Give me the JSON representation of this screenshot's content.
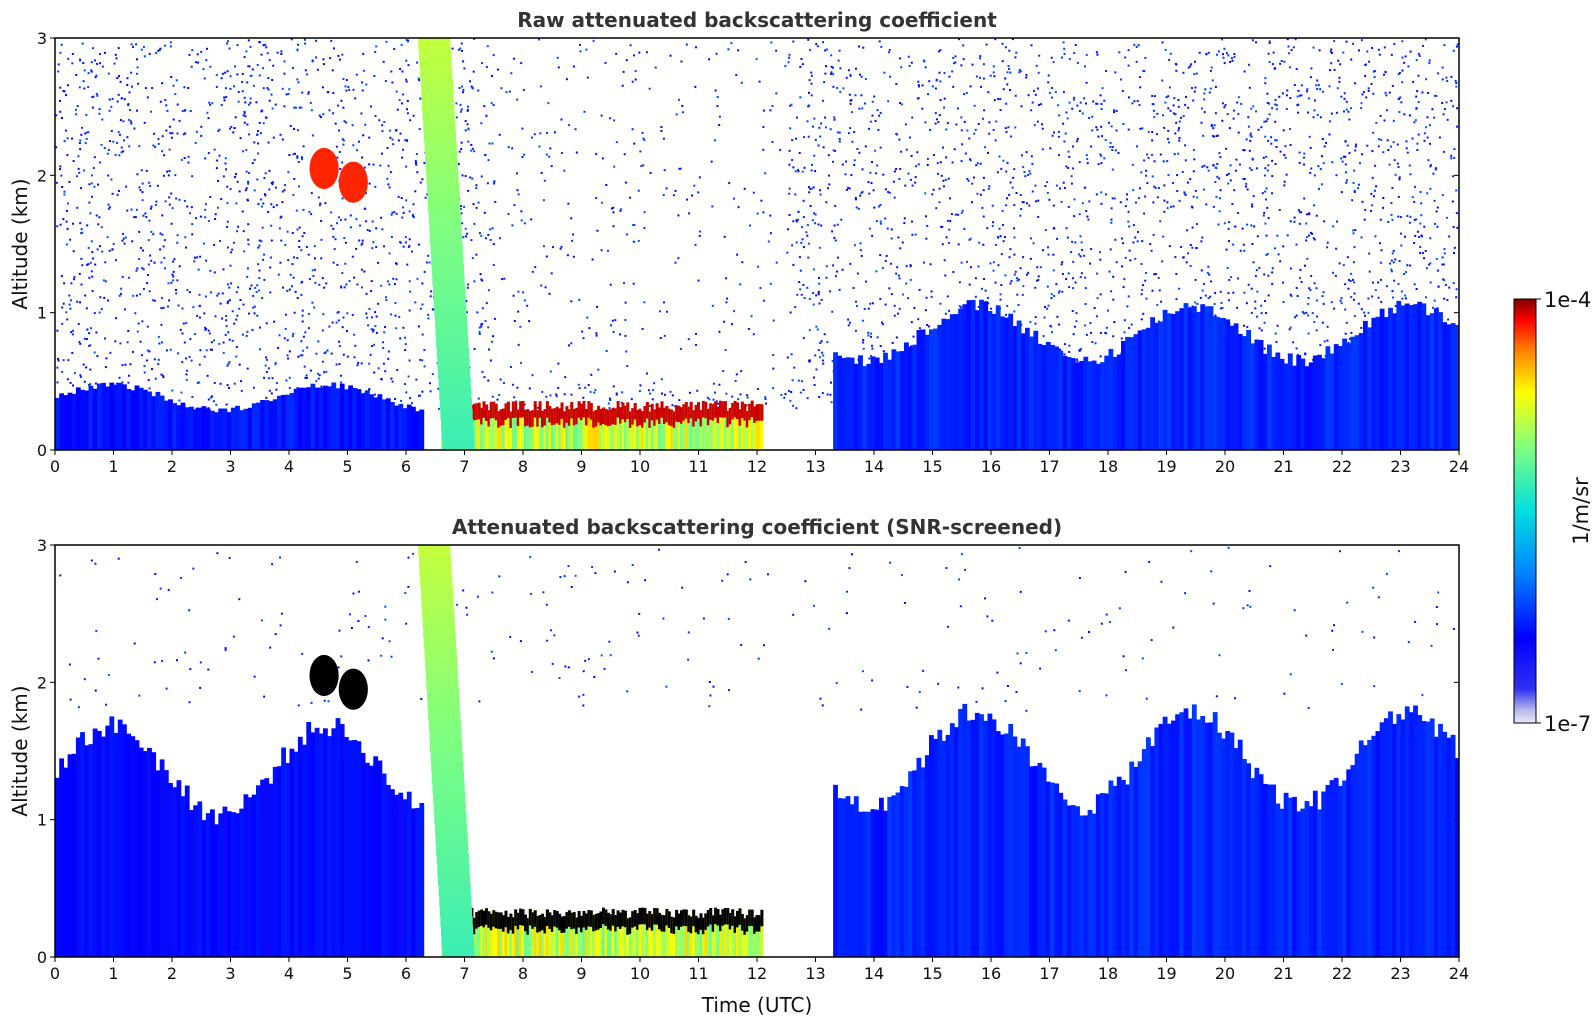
{
  "chart_data": [
    {
      "type": "heatmap",
      "title": "Raw attenuated backscattering coefficient",
      "xlabel": "",
      "ylabel": "Altitude (km)",
      "xlim": [
        0,
        24
      ],
      "ylim": [
        0,
        3
      ],
      "x_ticks": [
        "0",
        "1",
        "2",
        "3",
        "4",
        "5",
        "6",
        "7",
        "8",
        "9",
        "10",
        "11",
        "12",
        "13",
        "14",
        "15",
        "16",
        "17",
        "18",
        "19",
        "20",
        "21",
        "22",
        "23",
        "24"
      ],
      "y_ticks": [
        "0",
        "1",
        "2",
        "3"
      ],
      "grid": false,
      "colorscale": "jet-log",
      "background_noise": "dense speckle of blue noise above the boundary layer up to 3 km",
      "features": [
        {
          "kind": "boundary_layer",
          "t_start": 0,
          "t_end": 6.3,
          "top_km": 0.45,
          "level": 0.22
        },
        {
          "kind": "boundary_layer",
          "t_start": 13.3,
          "t_end": 24,
          "top_km": 1.0,
          "level": 0.24
        },
        {
          "kind": "cloud_base",
          "t_start": 6.6,
          "t_end": 12.1,
          "base_km": 0.2,
          "level": 0.97
        },
        {
          "kind": "precipitation_column",
          "t_start": 6.2,
          "t_end": 6.9,
          "top_km": 3.0,
          "level": 0.72
        },
        {
          "kind": "aerosol_layer",
          "t": 4.6,
          "alt_km": 2.05,
          "level": 0.93
        },
        {
          "kind": "aerosol_layer",
          "t": 5.1,
          "alt_km": 1.95,
          "level": 0.93
        }
      ]
    },
    {
      "type": "heatmap",
      "title": "Attenuated backscattering coefficient (SNR-screened)",
      "xlabel": "Time (UTC)",
      "ylabel": "Altitude (km)",
      "xlim": [
        0,
        24
      ],
      "ylim": [
        0,
        3
      ],
      "x_ticks": [
        "0",
        "1",
        "2",
        "3",
        "4",
        "5",
        "6",
        "7",
        "8",
        "9",
        "10",
        "11",
        "12",
        "13",
        "14",
        "15",
        "16",
        "17",
        "18",
        "19",
        "20",
        "21",
        "22",
        "23",
        "24"
      ],
      "y_ticks": [
        "0",
        "1",
        "2",
        "3"
      ],
      "grid": false,
      "colorscale": "jet-log",
      "background_noise": "screened: white above signal with sparse isolated specks",
      "features": [
        {
          "kind": "boundary_layer",
          "t_start": 0,
          "t_end": 6.3,
          "top_km": 1.6,
          "level": 0.2
        },
        {
          "kind": "boundary_layer",
          "t_start": 13.3,
          "t_end": 24,
          "top_km": 1.7,
          "level": 0.24
        },
        {
          "kind": "cloud_base",
          "t_start": 6.6,
          "t_end": 12.1,
          "base_km": 0.2,
          "level": 1.0
        },
        {
          "kind": "precipitation_column",
          "t_start": 6.2,
          "t_end": 6.9,
          "top_km": 3.0,
          "level": 0.72
        },
        {
          "kind": "aerosol_layer",
          "t": 4.6,
          "alt_km": 2.05,
          "level": 1.0
        },
        {
          "kind": "aerosol_layer",
          "t": 5.1,
          "alt_km": 1.95,
          "level": 1.0
        }
      ]
    }
  ],
  "colorbar": {
    "label": "1/m/sr",
    "max_label": "1e-4",
    "min_label": "1e-7",
    "min_value": 1e-07,
    "max_value": 0.0001,
    "scale": "log"
  }
}
